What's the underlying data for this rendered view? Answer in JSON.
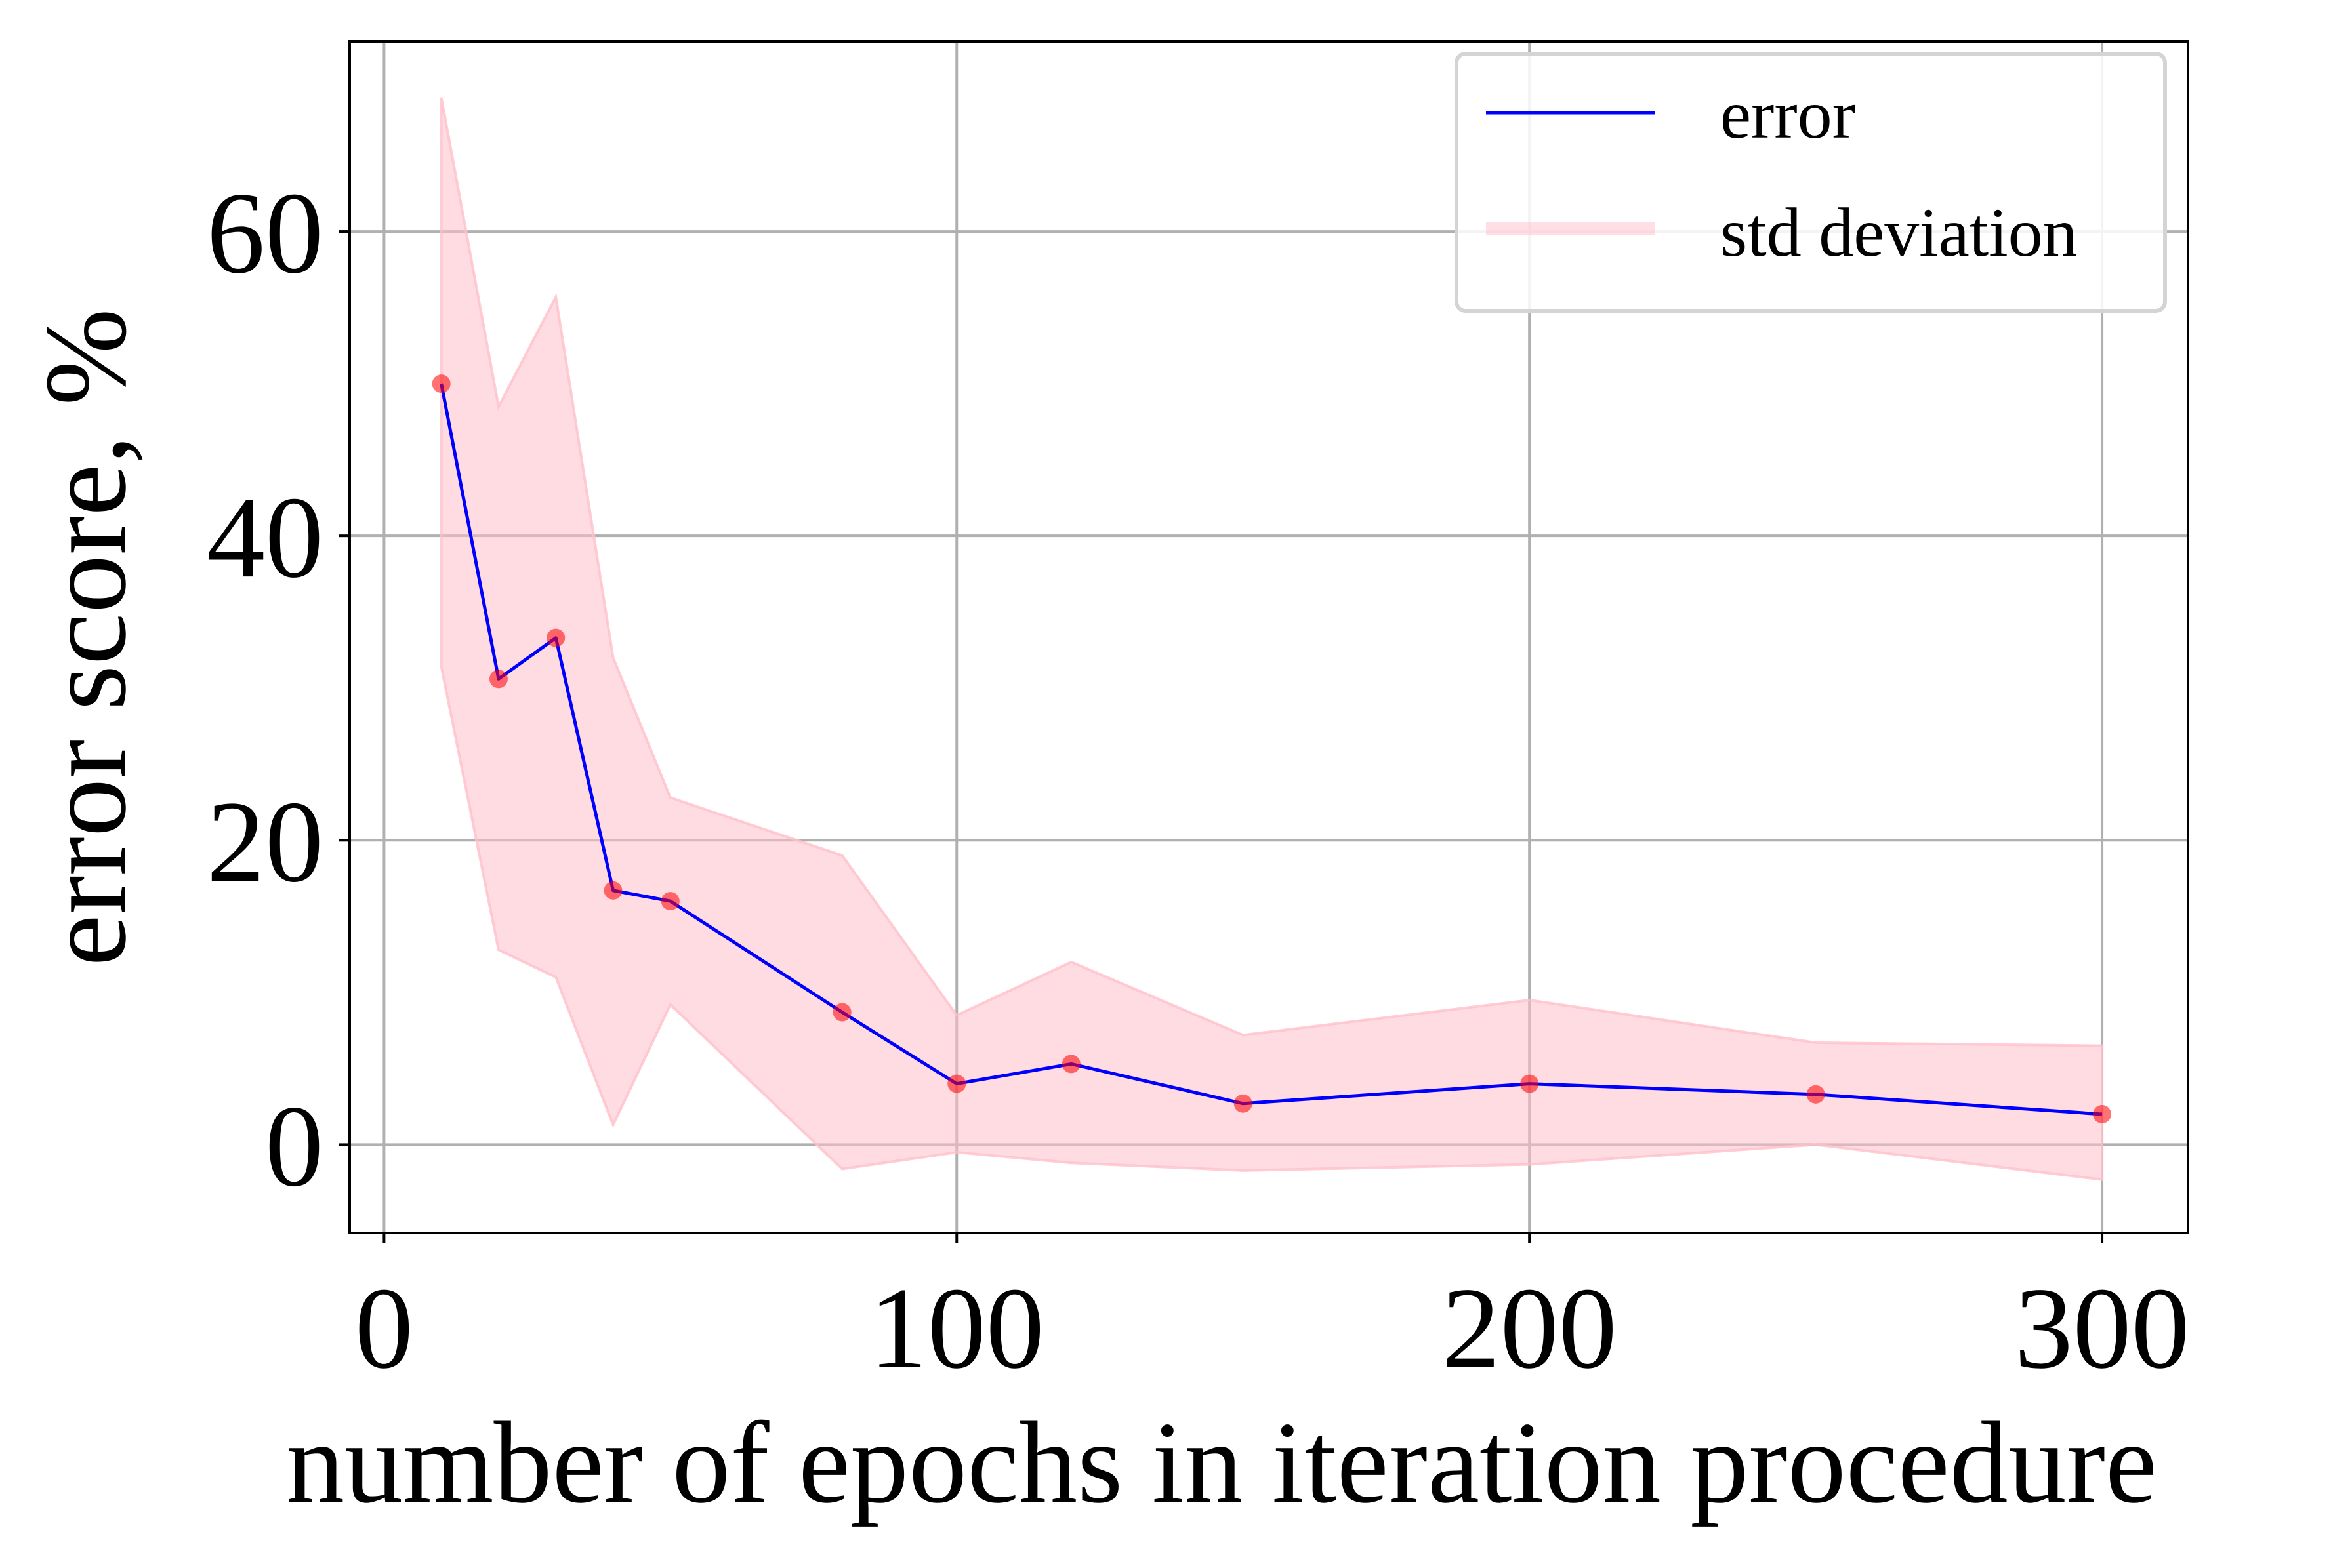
{
  "chart_data": {
    "type": "line",
    "title": "",
    "xlabel": "number of epochs in iteration procedure",
    "ylabel": "error score, %",
    "xlim": [
      -6,
      315
    ],
    "ylim": [
      -5.8,
      72.5
    ],
    "xticks": [
      0,
      100,
      200,
      300
    ],
    "yticks": [
      0,
      20,
      40,
      60
    ],
    "xtick_labels": [
      "0",
      "100",
      "200",
      "300"
    ],
    "ytick_labels": [
      "0",
      "20",
      "40",
      "60"
    ],
    "grid": true,
    "legend_position": "top-right",
    "series": [
      {
        "name": "error",
        "type": "line",
        "color": "#0000ff",
        "x": [
          10,
          20,
          30,
          40,
          50,
          80,
          100,
          120,
          150,
          200,
          250,
          300
        ],
        "y": [
          50.0,
          30.6,
          33.3,
          16.7,
          16.0,
          8.7,
          4.0,
          5.3,
          2.7,
          4.0,
          3.3,
          2.0
        ]
      },
      {
        "name": "std deviation",
        "type": "band",
        "color": "#ffc0cb",
        "x": [
          10,
          20,
          30,
          40,
          50,
          80,
          100,
          120,
          150,
          200,
          250,
          300
        ],
        "upper": [
          68.8,
          48.5,
          55.7,
          32.0,
          22.8,
          19.0,
          8.5,
          12.0,
          7.2,
          9.5,
          6.7,
          6.5
        ],
        "lower": [
          31.4,
          12.8,
          11.0,
          1.3,
          9.2,
          -1.6,
          -0.5,
          -1.2,
          -1.7,
          -1.3,
          0.0,
          -2.3
        ]
      }
    ],
    "markers": {
      "color": "#ff0000",
      "x": [
        10,
        20,
        30,
        40,
        50,
        80,
        100,
        120,
        150,
        200,
        250,
        300
      ],
      "y": [
        50.0,
        30.6,
        33.3,
        16.7,
        16.0,
        8.7,
        4.0,
        5.3,
        2.7,
        4.0,
        3.3,
        2.0
      ]
    },
    "legend": [
      {
        "label": "error",
        "kind": "line",
        "color": "#0000ff"
      },
      {
        "label": "std deviation",
        "kind": "band",
        "color": "#ffc0cb"
      }
    ]
  }
}
